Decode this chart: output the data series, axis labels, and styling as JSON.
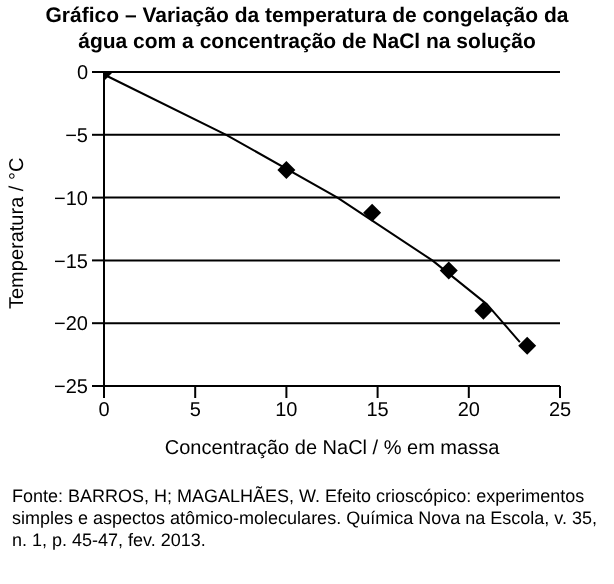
{
  "chart_data": {
    "type": "scatter",
    "title": "Gráfico – Variação da temperatura de congelação da água com a concentração de NaCl na solução",
    "xlabel": "Concentração de NaCl / % em massa",
    "ylabel": "Temperatura / °C",
    "series": [
      {
        "color": "#000000",
        "marker": "diamond",
        "x": [
          0,
          10,
          14.7,
          18.9,
          20.8,
          23.2
        ],
        "values": [
          0,
          -7.8,
          -11.2,
          -15.8,
          -19,
          -21.8
        ]
      },
      {
        "type": "line",
        "color": "#000000",
        "marker": "none",
        "x": [
          0,
          6.7,
          12.8,
          18,
          21,
          22.8
        ],
        "values": [
          -0.2,
          -5,
          -10,
          -15,
          -18.5,
          -21.5
        ]
      }
    ],
    "xlim": [
      0,
      25
    ],
    "xticks": [
      0,
      5,
      10,
      15,
      20,
      25
    ],
    "ylim": [
      -25,
      0
    ],
    "yticks": [
      -25,
      -20,
      -15,
      -10,
      -5,
      0
    ],
    "grid": "y",
    "annotations": [
      "Fonte: BARROS, H; MAGALHÃES, W. Efeito crioscópico: experimentos simples e aspectos atômico-moleculares. Química Nova na Escola, v. 35, n. 1, p. 45-47, fev. 2013."
    ]
  }
}
